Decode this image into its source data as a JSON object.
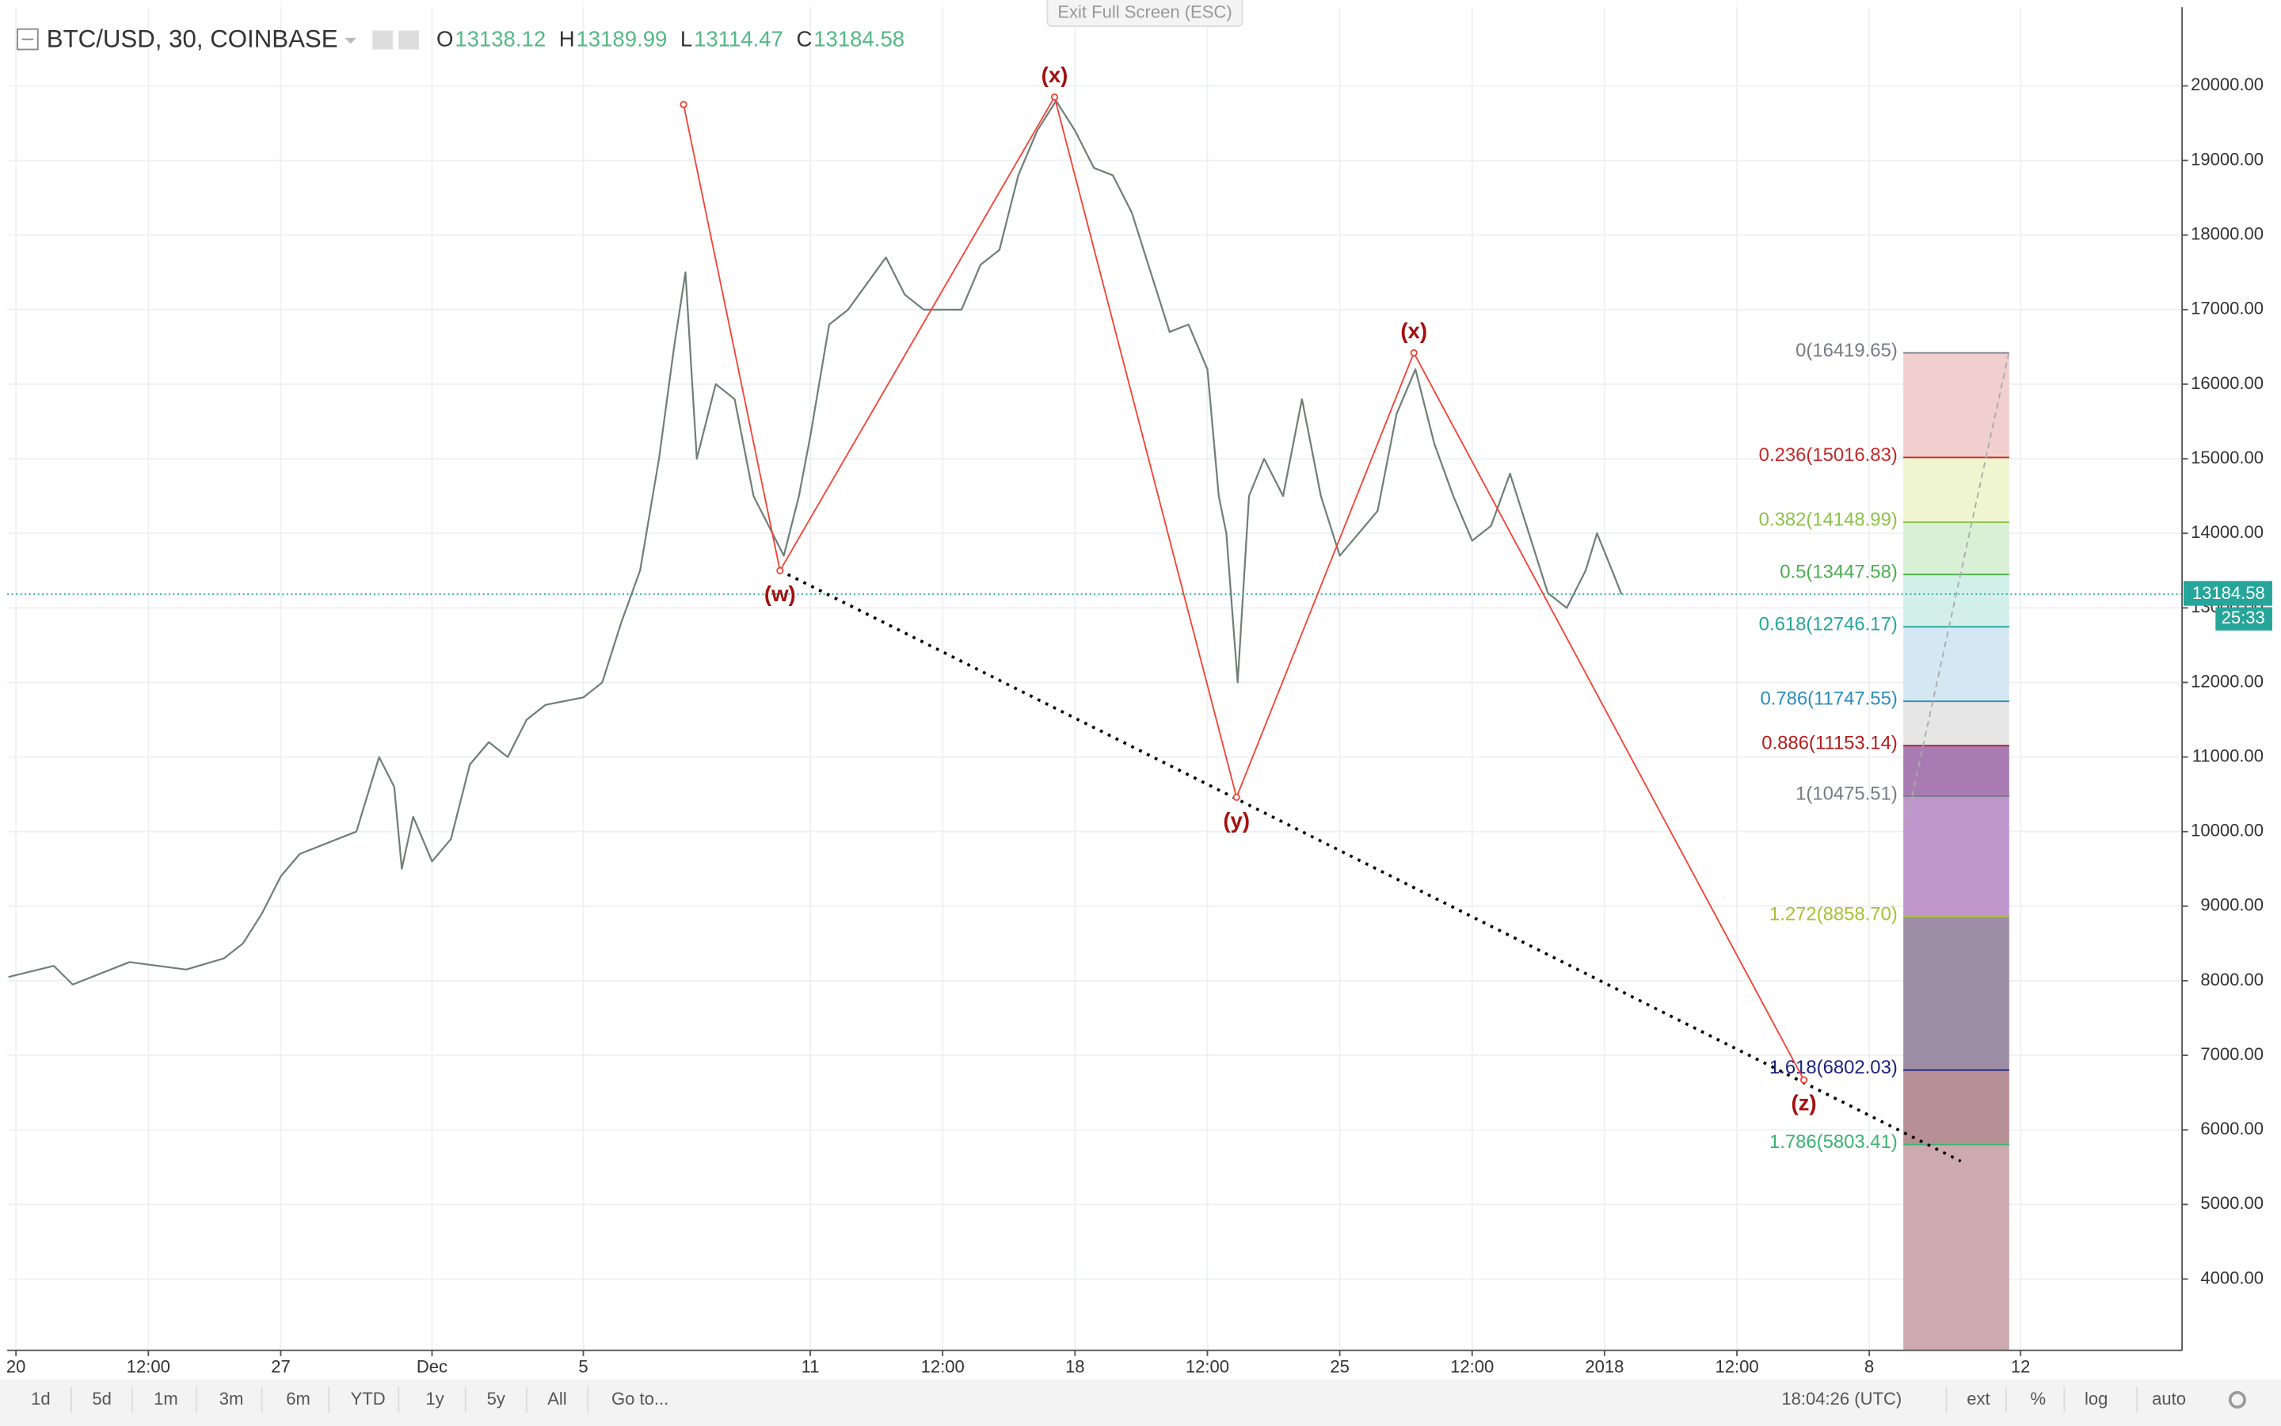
{
  "header": {
    "symbol": "BTC/USD, 30, COINBASE",
    "ohlc": [
      {
        "label": "O",
        "value": 13138.12
      },
      {
        "label": "H",
        "value": 13189.99
      },
      {
        "label": "L",
        "value": 13114.47
      },
      {
        "label": "C",
        "value": 13184.58
      }
    ],
    "exit_button": "Exit Full Screen (ESC)"
  },
  "chart_data": {
    "type": "line",
    "xlim": [
      -0.23,
      57.27
    ],
    "xticks": [
      {
        "value": 0,
        "label": "20"
      },
      {
        "value": 3.5,
        "label": "12:00"
      },
      {
        "value": 7,
        "label": "27"
      },
      {
        "value": 11,
        "label": "Dec"
      },
      {
        "value": 15,
        "label": "5"
      },
      {
        "value": 21,
        "label": "11"
      },
      {
        "value": 24.5,
        "label": "12:00"
      },
      {
        "value": 28,
        "label": "18"
      },
      {
        "value": 31.5,
        "label": "12:00"
      },
      {
        "value": 35,
        "label": "25"
      },
      {
        "value": 38.5,
        "label": "12:00"
      },
      {
        "value": 42,
        "label": "2018"
      },
      {
        "value": 45.5,
        "label": "12:00"
      },
      {
        "value": 49,
        "label": "8"
      },
      {
        "value": 53,
        "label": "12"
      }
    ],
    "ylim": [
      3044,
      21054
    ],
    "yticks": [
      {
        "value": 4000,
        "label": "4000.00"
      },
      {
        "value": 5000,
        "label": "5000.00"
      },
      {
        "value": 6000,
        "label": "6000.00"
      },
      {
        "value": 7000,
        "label": "7000.00"
      },
      {
        "value": 8000,
        "label": "8000.00"
      },
      {
        "value": 9000,
        "label": "9000.00"
      },
      {
        "value": 10000,
        "label": "10000.00"
      },
      {
        "value": 11000,
        "label": "11000.00"
      },
      {
        "value": 12000,
        "label": "12000.00"
      },
      {
        "value": 13000,
        "label": "13000.00"
      },
      {
        "value": 14000,
        "label": "14000.00"
      },
      {
        "value": 15000,
        "label": "15000.00"
      },
      {
        "value": 16000,
        "label": "16000.00"
      },
      {
        "value": 17000,
        "label": "17000.00"
      },
      {
        "value": 18000,
        "label": "18000.00"
      },
      {
        "value": 19000,
        "label": "19000.00"
      },
      {
        "value": 20000,
        "label": "20000.00"
      }
    ],
    "grid": true,
    "series": [
      {
        "color": "#6f7f76",
        "x": [
          -0.2,
          1,
          1.5,
          3,
          4.5,
          5.5,
          6,
          6.5,
          7,
          7.5,
          8.5,
          9,
          9.6,
          10,
          10.2,
          10.5,
          11,
          11.5,
          12,
          12.5,
          13,
          13.5,
          14,
          15,
          15.5,
          16,
          16.5,
          17,
          17.4,
          17.7,
          18,
          18.5,
          19,
          19.5,
          20,
          20.3,
          20.7,
          21,
          21.5,
          22,
          23,
          23.5,
          24,
          25,
          25.5,
          26,
          26.5,
          27,
          27.5,
          28,
          28.5,
          29,
          29.5,
          30,
          30.5,
          31,
          31.5,
          31.8,
          32,
          32.3,
          32.6,
          33,
          33.5,
          34,
          34.5,
          35,
          35.5,
          36,
          36.5,
          37,
          37.5,
          38,
          38.5,
          39,
          39.5,
          40,
          40.5,
          41,
          41.5,
          41.8,
          42.2,
          42.45
        ],
        "values": [
          8050,
          8200,
          7950,
          8250,
          8150,
          8300,
          8500,
          8900,
          9400,
          9700,
          9900,
          10000,
          11000,
          10600,
          9500,
          10200,
          9600,
          9900,
          10900,
          11200,
          11000,
          11500,
          11700,
          11800,
          12000,
          12800,
          13500,
          15000,
          16500,
          17500,
          15000,
          16000,
          15800,
          14500,
          14000,
          13700,
          14500,
          15300,
          16800,
          17000,
          17700,
          17200,
          17000,
          17000,
          17600,
          17800,
          18800,
          19400,
          19800,
          19400,
          18900,
          18800,
          18300,
          17500,
          16700,
          16800,
          16200,
          14500,
          14000,
          12000,
          14500,
          15000,
          14500,
          15800,
          14500,
          13700,
          14000,
          14300,
          15600,
          16200,
          15200,
          14500,
          13900,
          14100,
          14800,
          14000,
          13200,
          13000,
          13500,
          14000,
          13500,
          13180
        ]
      }
    ],
    "current_price": {
      "value": 13184.58,
      "countdown": "25:33",
      "color": "#26a69a"
    },
    "wave": {
      "color": "#f44336",
      "label_color": "#a50e0e",
      "x": [
        17.65,
        20.2,
        27.46,
        32.27,
        36.96,
        47.27
      ],
      "values": [
        19750,
        13500,
        19850,
        10460,
        16420,
        6670
      ],
      "labels": [
        null,
        "(w)",
        "(x)",
        "(y)",
        "(x)",
        "(z)"
      ]
    },
    "trendline": {
      "color": "#000000",
      "x": [
        20.2,
        51.42
      ],
      "values": [
        13500,
        5580
      ]
    },
    "projection": {
      "color": "#aaaaaa",
      "x": [
        49.96,
        52.69
      ],
      "values": [
        10070,
        16420
      ]
    },
    "fib": {
      "x": [
        49.9,
        52.7
      ],
      "bottom": 3044,
      "levels": [
        {
          "value": 16419.65,
          "label": "0(16419.65)",
          "color": "#787b86",
          "fill": "#f2cfcf"
        },
        {
          "value": 15016.83,
          "label": "0.236(15016.83)",
          "color": "#c62828",
          "fill": "#eef5cf"
        },
        {
          "value": 14148.99,
          "label": "0.382(14148.99)",
          "color": "#8bc34a",
          "fill": "#d9f0d6"
        },
        {
          "value": 13447.58,
          "label": "0.5(13447.58)",
          "color": "#4caf50",
          "fill": "#d2efe9"
        },
        {
          "value": 12746.17,
          "label": "0.618(12746.17)",
          "color": "#26a69a",
          "fill": "#d6e7f4"
        },
        {
          "value": 11747.55,
          "label": "0.786(11747.55)",
          "color": "#2b8cbe",
          "fill": "#e6e6e6"
        },
        {
          "value": 11153.14,
          "label": "0.886(11153.14)",
          "color": "#b71c1c",
          "fill": "#a87cb2"
        },
        {
          "value": 10475.51,
          "label": "1(10475.51)",
          "color": "#787b86",
          "fill": "#bf97cc"
        },
        {
          "value": 8858.7,
          "label": "1.272(8858.70)",
          "color": "#a5c234",
          "fill": "#9d8ea6"
        },
        {
          "value": 6802.03,
          "label": "1.618(6802.03)",
          "color": "#1a237e",
          "fill": "#b69096"
        },
        {
          "value": 5803.41,
          "label": "1.786(5803.41)",
          "color": "#3cb371",
          "fill": "#cdaaaf"
        }
      ]
    }
  },
  "toolbar": {
    "ranges": [
      "1d",
      "5d",
      "1m",
      "3m",
      "6m",
      "YTD",
      "1y",
      "5y",
      "All"
    ],
    "goto": "Go to...",
    "clock": "18:04:26 (UTC)",
    "options": [
      "ext",
      "%",
      "log",
      "auto"
    ]
  }
}
